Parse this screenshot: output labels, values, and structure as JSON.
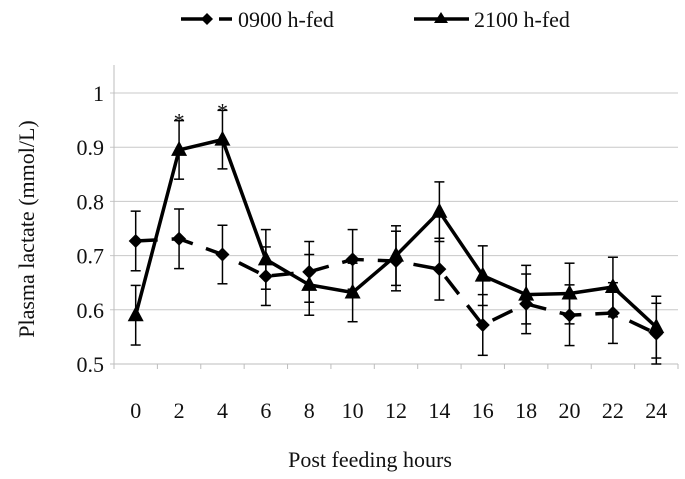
{
  "chart_data": {
    "type": "line",
    "title": "",
    "xlabel": "Post feeding hours",
    "ylabel": "Plasma lactate (mmol/L)",
    "ylim": [
      0.5,
      1.0
    ],
    "yticks": [
      "0.5",
      "0.6",
      "0.7",
      "0.8",
      "0.9",
      "1"
    ],
    "ytick_values": [
      0.5,
      0.6,
      0.7,
      0.8,
      0.9,
      1.0
    ],
    "categories": [
      "0",
      "2",
      "4",
      "6",
      "8",
      "10",
      "12",
      "14",
      "16",
      "18",
      "20",
      "22",
      "24"
    ],
    "grid": "horizontal",
    "legend_position": "top",
    "series": [
      {
        "name": "0900 h-fed",
        "marker": "diamond",
        "line_style": "dashed",
        "values": [
          0.727,
          0.731,
          0.702,
          0.662,
          0.67,
          0.693,
          0.69,
          0.675,
          0.572,
          0.611,
          0.59,
          0.594,
          0.556
        ],
        "error": [
          0.055,
          0.055,
          0.054,
          0.054,
          0.056,
          0.055,
          0.055,
          0.057,
          0.056,
          0.055,
          0.056,
          0.056,
          0.056
        ]
      },
      {
        "name": "2100 h-fed",
        "marker": "triangle",
        "line_style": "solid",
        "values": [
          0.59,
          0.895,
          0.914,
          0.693,
          0.646,
          0.632,
          0.7,
          0.781,
          0.663,
          0.628,
          0.63,
          0.642,
          0.568
        ],
        "error": [
          0.055,
          0.054,
          0.054,
          0.055,
          0.056,
          0.054,
          0.055,
          0.055,
          0.055,
          0.054,
          0.056,
          0.055,
          0.057
        ]
      }
    ],
    "annotations": [
      {
        "text": "*",
        "category": "2",
        "series": "2100 h-fed"
      },
      {
        "text": "*",
        "category": "4",
        "series": "2100 h-fed"
      }
    ]
  }
}
